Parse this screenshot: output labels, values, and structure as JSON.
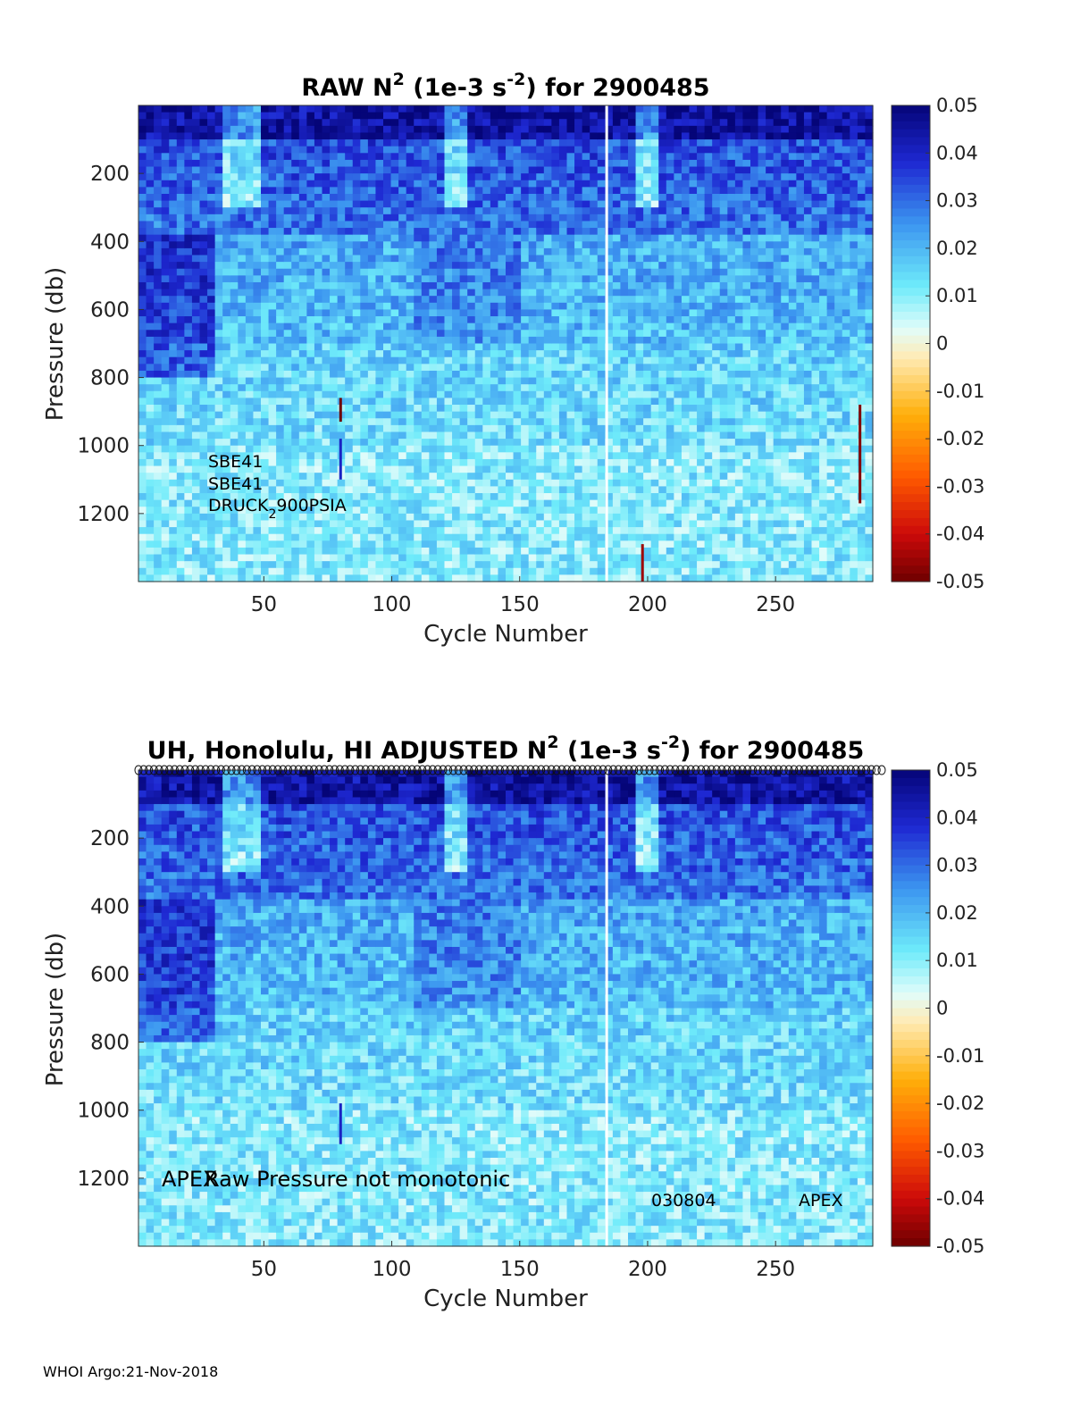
{
  "chart_data": [
    {
      "type": "heatmap",
      "title_prefix": "RAW N",
      "title_sup": "2",
      "title_unit_open": " (1e-3 s",
      "title_unit_sup": "-2",
      "title_suffix": ") for 2900485",
      "xlabel": "Cycle Number",
      "ylabel": "Pressure (db)",
      "xlim": [
        1,
        288
      ],
      "ylim": [
        1400,
        0
      ],
      "x_ticks": [
        "50",
        "100",
        "150",
        "200",
        "250"
      ],
      "x_tick_values": [
        50,
        100,
        150,
        200,
        250
      ],
      "y_ticks": [
        "200",
        "400",
        "600",
        "800",
        "1000",
        "1200"
      ],
      "y_tick_values": [
        200,
        400,
        600,
        800,
        1000,
        1200
      ],
      "color_range": [
        -0.05,
        0.05
      ],
      "colorbar_ticks": [
        "0.05",
        "0.04",
        "0.03",
        "0.02",
        "0.01",
        "0",
        "-0.01",
        "-0.02",
        "-0.03",
        "-0.04",
        "-0.05"
      ],
      "colorbar_values": [
        0.05,
        0.04,
        0.03,
        0.02,
        0.01,
        0,
        -0.01,
        -0.02,
        -0.03,
        -0.04,
        -0.05
      ],
      "data_gap_cycle": 184,
      "annotations": [
        "SBE41",
        "SBE41",
        "DRUCK",
        "2",
        "900PSIA"
      ]
    },
    {
      "type": "heatmap",
      "title_prefix": "UH, Honolulu, HI  ADJUSTED N",
      "title_sup": "2",
      "title_unit_open": " (1e-3 s",
      "title_unit_sup": "-2",
      "title_suffix": ") for 2900485",
      "xlabel": "Cycle Number",
      "ylabel": "Pressure (db)",
      "xlim": [
        1,
        288
      ],
      "ylim": [
        1400,
        0
      ],
      "x_ticks": [
        "50",
        "100",
        "150",
        "200",
        "250"
      ],
      "x_tick_values": [
        50,
        100,
        150,
        200,
        250
      ],
      "y_ticks": [
        "200",
        "400",
        "600",
        "800",
        "1000",
        "1200"
      ],
      "y_tick_values": [
        200,
        400,
        600,
        800,
        1000,
        1200
      ],
      "color_range": [
        -0.05,
        0.05
      ],
      "colorbar_ticks": [
        "0.05",
        "0.04",
        "0.03",
        "0.02",
        "0.01",
        "0",
        "-0.01",
        "-0.02",
        "-0.03",
        "-0.04",
        "-0.05"
      ],
      "colorbar_values": [
        0.05,
        0.04,
        0.03,
        0.02,
        0.01,
        0,
        -0.01,
        -0.02,
        -0.03,
        -0.04,
        -0.05
      ],
      "data_gap_cycle": 184,
      "annotations": [
        "APEX",
        "Raw Pressure not monotonic",
        "030804",
        "APEX"
      ]
    }
  ],
  "footer": "WHOI Argo:21-Nov-2018"
}
